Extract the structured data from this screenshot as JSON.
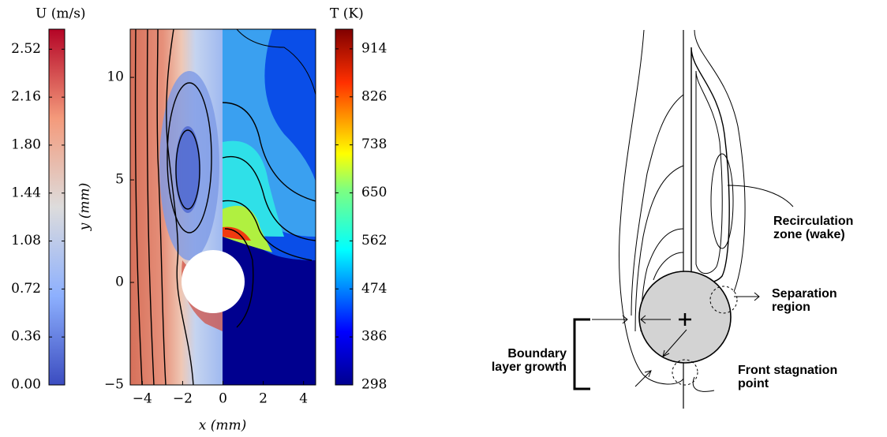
{
  "u_colorbar": {
    "title": "U (m/s)",
    "lim": [
      0,
      2.67
    ],
    "ticks": [
      {
        "value": 0,
        "label": "0.00"
      },
      0.36,
      0.72,
      1.08,
      1.44,
      {
        "value": 1.8,
        "label": "1.80"
      },
      2.16,
      2.52
    ]
  },
  "t_colorbar": {
    "title": "T (K)",
    "lim": [
      298,
      950
    ],
    "ticks": [
      298,
      386,
      474,
      562,
      650,
      738,
      826,
      914
    ]
  },
  "plot": {
    "xlabel": "x (mm)",
    "ylabel": "y (mm)",
    "xlim": [
      -4.6,
      4.6
    ],
    "ylim": [
      -5,
      12.35
    ],
    "xticks": [
      {
        "value": -4,
        "label": "−4"
      },
      {
        "value": -2,
        "label": "−2"
      },
      0,
      2,
      4
    ],
    "yticks": [
      {
        "value": -5,
        "label": "−5"
      },
      0,
      5,
      10
    ]
  },
  "schematic": {
    "recirculation": [
      "Recirculation",
      "zone (wake)"
    ],
    "separation": [
      "Separation",
      "region"
    ],
    "stagnation": [
      "Front stagnation",
      "point"
    ],
    "boundary": [
      "Boundary",
      "layer growth"
    ]
  }
}
